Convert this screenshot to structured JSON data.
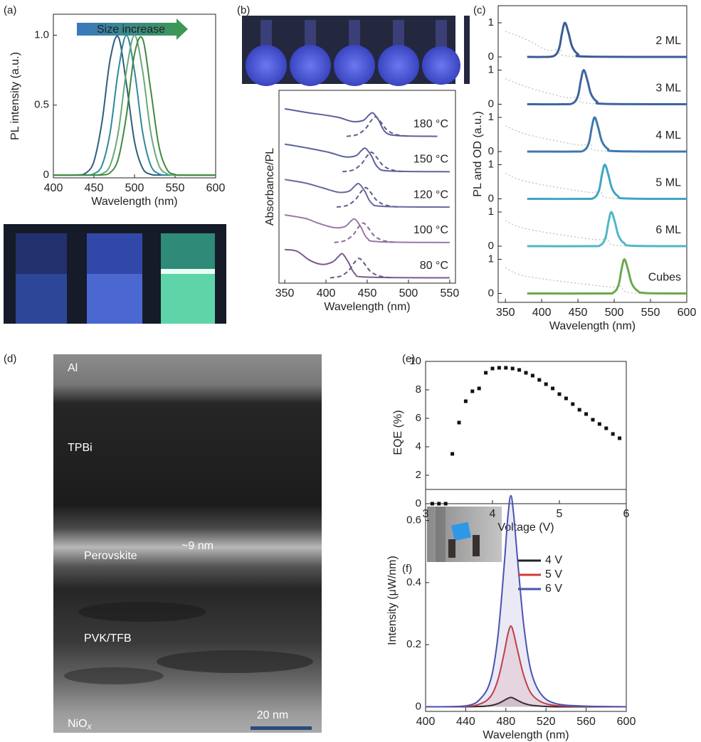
{
  "chart_data": [
    {
      "type": "line",
      "panel_label": "(a)",
      "annotation": "Size increase",
      "xlabel": "Wavelength (nm)",
      "ylabel": "PL intensity (a.u.)",
      "xlim": [
        400,
        600
      ],
      "xticks": [
        400,
        450,
        500,
        550,
        600
      ],
      "ylim": [
        -0.02,
        1.15
      ],
      "yticks": [
        0,
        0.5,
        {
          "value": 1,
          "label": "1.0"
        }
      ],
      "x": [
        400,
        410,
        420,
        430,
        440,
        450,
        460,
        470,
        480,
        490,
        500,
        510,
        520,
        530,
        540,
        550,
        560,
        570,
        580,
        590,
        600
      ],
      "series": [
        {
          "color": "#2f5d7c",
          "values": [
            0,
            0,
            0,
            0.001,
            0.014,
            0.098,
            0.383,
            0.827,
            0.988,
            0.653,
            0.239,
            0.049,
            0.005,
            0,
            0,
            0,
            0,
            0,
            0,
            0,
            0
          ]
        },
        {
          "color": "#2e8a9a",
          "values": [
            0,
            0,
            0,
            0,
            0,
            0.009,
            0.07,
            0.306,
            0.744,
            1,
            0.744,
            0.306,
            0.07,
            0.009,
            0,
            0,
            0,
            0,
            0,
            0,
            0
          ]
        },
        {
          "color": "#6aa87a",
          "values": [
            0,
            0,
            0,
            0,
            0,
            0,
            0.009,
            0.07,
            0.306,
            0.744,
            1,
            0.744,
            0.306,
            0.07,
            0.009,
            0,
            0,
            0,
            0,
            0,
            0
          ]
        },
        {
          "color": "#3e8a3e",
          "values": [
            0,
            0,
            0,
            0,
            0,
            0,
            0.001,
            0.017,
            0.116,
            0.425,
            0.865,
            0.974,
            0.607,
            0.209,
            0.04,
            0.004,
            0,
            0,
            0,
            0,
            0
          ]
        }
      ]
    },
    {
      "type": "line",
      "panel_label": "(b)",
      "xlabel": "Wavelength (nm)",
      "ylabel": "Absorbance/PL",
      "xlim": [
        343,
        557
      ],
      "xticks": [
        350,
        400,
        450,
        500,
        550
      ],
      "ylim": [
        -0.15,
        5.3
      ],
      "series": [
        {
          "name": "180 °C",
          "color": "#5c5e9c",
          "style": "solid",
          "x": [
            350,
            375,
            412,
            432,
            445,
            452,
            457,
            464,
            472,
            487,
            535
          ],
          "values": [
            4.78,
            4.68,
            4.55,
            4.42,
            4.45,
            4.6,
            4.66,
            4.45,
            4.12,
            4.02,
            4
          ]
        },
        {
          "color": "#5c5e8a",
          "style": "dashed",
          "x": [
            425,
            438,
            448,
            454,
            460,
            466,
            474,
            485,
            500
          ],
          "values": [
            4,
            4.05,
            4.22,
            4.42,
            4.55,
            4.42,
            4.18,
            4.05,
            4
          ]
        },
        {
          "name": "150 °C",
          "color": "#5e62a0",
          "style": "solid",
          "x": [
            350,
            375,
            403,
            423,
            436,
            443,
            448,
            455,
            463,
            478,
            550
          ],
          "values": [
            3.78,
            3.68,
            3.55,
            3.42,
            3.45,
            3.6,
            3.66,
            3.45,
            3.12,
            3.02,
            3
          ]
        },
        {
          "color": "#5c5e8a",
          "style": "dashed",
          "x": [
            420,
            433,
            443,
            449,
            455,
            461,
            469,
            480,
            495
          ],
          "values": [
            3,
            3.05,
            3.22,
            3.42,
            3.55,
            3.42,
            3.18,
            3.05,
            3
          ]
        },
        {
          "name": "120 °C",
          "color": "#66689e",
          "style": "solid",
          "x": [
            350,
            375,
            395,
            415,
            428,
            435,
            440,
            447,
            455,
            470,
            550
          ],
          "values": [
            2.78,
            2.68,
            2.55,
            2.42,
            2.45,
            2.6,
            2.66,
            2.45,
            2.12,
            2.02,
            2
          ]
        },
        {
          "color": "#5c5e8a",
          "style": "dashed",
          "x": [
            413,
            426,
            436,
            442,
            448,
            454,
            462,
            473,
            488
          ],
          "values": [
            2,
            2.05,
            2.22,
            2.42,
            2.55,
            2.42,
            2.18,
            2.05,
            2
          ]
        },
        {
          "name": "100 °C",
          "color": "#9a78a8",
          "style": "solid",
          "x": [
            350,
            375,
            390,
            410,
            423,
            430,
            435,
            442,
            450,
            465,
            550
          ],
          "values": [
            1.78,
            1.68,
            1.55,
            1.42,
            1.45,
            1.6,
            1.66,
            1.45,
            1.12,
            1.02,
            1
          ]
        },
        {
          "color": "#8a6a98",
          "style": "dashed",
          "x": [
            410,
            423,
            433,
            439,
            445,
            451,
            459,
            470,
            485
          ],
          "values": [
            1,
            1.05,
            1.22,
            1.42,
            1.55,
            1.42,
            1.18,
            1.05,
            1
          ]
        },
        {
          "name": "80 °C",
          "color": "#7a5a8c",
          "style": "solid",
          "x": [
            350,
            365,
            380,
            395,
            408,
            415,
            420,
            427,
            435,
            450,
            550
          ],
          "values": [
            0.8,
            0.75,
            0.5,
            0.38,
            0.45,
            0.6,
            0.68,
            0.45,
            0.12,
            0.02,
            0
          ]
        },
        {
          "color": "#6a5a80",
          "style": "dashed",
          "x": [
            405,
            418,
            428,
            434,
            440,
            446,
            454,
            465,
            480
          ],
          "values": [
            0,
            0.05,
            0.22,
            0.42,
            0.55,
            0.42,
            0.18,
            0.05,
            0
          ]
        }
      ]
    },
    {
      "type": "line-panels",
      "panel_label": "(c)",
      "xlabel": "Wavelength (nm)",
      "ylabel": "PL and OD (a.u.)",
      "xlim": [
        340,
        600
      ],
      "xticks": [
        350,
        400,
        450,
        500,
        550,
        600
      ],
      "panels": [
        {
          "label": "2 ML",
          "ylim": [
            0,
            1
          ],
          "yticks": [
            0,
            1
          ],
          "series": [
            {
              "color": "#bbbbbb",
              "style": "dotted",
              "x": [
                350,
                380,
                407,
                426,
                440,
                600
              ],
              "values": [
                0.75,
                0.5,
                0.2,
                0.22,
                0.02,
                0
              ]
            },
            {
              "color": "#3b5b95",
              "style": "solid",
              "x": [
                380,
                402,
                417,
                424,
                428,
                432,
                437,
                442,
                450,
                462,
                600
              ],
              "values": [
                0,
                0,
                0.03,
                0.25,
                0.7,
                1,
                0.7,
                0.3,
                0.08,
                0.01,
                0
              ]
            }
          ]
        },
        {
          "label": "3 ML",
          "ylim": [
            0,
            1
          ],
          "yticks": [
            0,
            1
          ],
          "series": [
            {
              "color": "#bbbbbb",
              "style": "dotted",
              "x": [
                350,
                380,
                433,
                452,
                466,
                600
              ],
              "values": [
                0.75,
                0.5,
                0.2,
                0.22,
                0.02,
                0
              ]
            },
            {
              "color": "#3d649f",
              "style": "solid",
              "x": [
                380,
                428,
                443,
                450,
                454,
                458,
                463,
                468,
                476,
                488,
                600
              ],
              "values": [
                0,
                0,
                0.03,
                0.25,
                0.7,
                1,
                0.7,
                0.3,
                0.08,
                0.01,
                0
              ]
            }
          ]
        },
        {
          "label": "4 ML",
          "ylim": [
            0,
            1
          ],
          "yticks": [
            0,
            1
          ],
          "series": [
            {
              "color": "#bbbbbb",
              "style": "dotted",
              "x": [
                350,
                380,
                448,
                467,
                481,
                600
              ],
              "values": [
                0.75,
                0.5,
                0.2,
                0.22,
                0.02,
                0
              ]
            },
            {
              "color": "#3f78ae",
              "style": "solid",
              "x": [
                380,
                443,
                458,
                465,
                469,
                473,
                478,
                483,
                491,
                503,
                600
              ],
              "values": [
                0,
                0,
                0.03,
                0.25,
                0.7,
                1,
                0.7,
                0.3,
                0.08,
                0.01,
                0
              ]
            }
          ]
        },
        {
          "label": "5 ML",
          "ylim": [
            0,
            1
          ],
          "yticks": [
            0,
            1
          ],
          "series": [
            {
              "color": "#bbbbbb",
              "style": "dotted",
              "x": [
                350,
                380,
                462,
                481,
                495,
                600
              ],
              "values": [
                0.75,
                0.5,
                0.2,
                0.22,
                0.02,
                0
              ]
            },
            {
              "color": "#3ea6c4",
              "style": "solid",
              "x": [
                380,
                457,
                472,
                479,
                483,
                487,
                492,
                497,
                505,
                517,
                600
              ],
              "values": [
                0,
                0,
                0.03,
                0.25,
                0.7,
                1,
                0.7,
                0.3,
                0.08,
                0.01,
                0
              ]
            }
          ]
        },
        {
          "label": "6 ML",
          "ylim": [
            0,
            1
          ],
          "yticks": [
            0,
            1
          ],
          "series": [
            {
              "color": "#bbbbbb",
              "style": "dotted",
              "x": [
                350,
                380,
                471,
                490,
                504,
                600
              ],
              "values": [
                0.75,
                0.5,
                0.2,
                0.22,
                0.02,
                0
              ]
            },
            {
              "color": "#4fb7c9",
              "style": "solid",
              "x": [
                380,
                466,
                481,
                488,
                492,
                496,
                501,
                506,
                514,
                526,
                600
              ],
              "values": [
                0,
                0,
                0.03,
                0.25,
                0.7,
                1,
                0.7,
                0.3,
                0.08,
                0.01,
                0
              ]
            }
          ]
        },
        {
          "label": "Cubes",
          "ylim": [
            0,
            1
          ],
          "yticks": [
            0,
            1
          ],
          "series": [
            {
              "color": "#bbbbbb",
              "style": "dotted",
              "x": [
                350,
                380,
                489,
                508,
                522,
                600
              ],
              "values": [
                0.75,
                0.5,
                0.2,
                0.22,
                0.02,
                0
              ]
            },
            {
              "color": "#6aa84f",
              "style": "solid",
              "x": [
                380,
                484,
                499,
                506,
                510,
                514,
                519,
                524,
                532,
                544,
                600
              ],
              "values": [
                0,
                0,
                0.03,
                0.25,
                0.7,
                1,
                0.7,
                0.3,
                0.08,
                0.01,
                0
              ]
            }
          ]
        }
      ]
    },
    {
      "type": "scatter",
      "panel_label": "(e)",
      "xlabel": "Voltage (V)",
      "ylabel": "EQE (%)",
      "color": "#111111",
      "xlim": [
        3,
        6
      ],
      "xticks": [
        3,
        4,
        5,
        6
      ],
      "ylim": [
        0,
        10
      ],
      "yticks": [
        0,
        2,
        4,
        6,
        8,
        10
      ],
      "x": [
        3.1,
        3.2,
        3.3,
        3.4,
        3.5,
        3.6,
        3.7,
        3.8,
        3.9,
        4,
        4.1,
        4.2,
        4.3,
        4.4,
        4.5,
        4.6,
        4.7,
        4.8,
        4.9,
        5,
        5.1,
        5.2,
        5.3,
        5.4,
        5.5,
        5.6,
        5.7,
        5.8,
        5.9
      ],
      "values": [
        0,
        0,
        0,
        3.5,
        5.7,
        7.2,
        7.9,
        8.1,
        9.2,
        9.5,
        9.55,
        9.55,
        9.5,
        9.4,
        9.2,
        9,
        8.7,
        8.4,
        8.1,
        7.7,
        7.4,
        7,
        6.6,
        6.3,
        5.9,
        5.6,
        5.3,
        4.9,
        4.6
      ]
    },
    {
      "type": "line",
      "panel_label": "(f)",
      "xlabel": "Wavelength (nm)",
      "ylabel": "Intensity (μW/nm)",
      "legend": "top-right",
      "fill": true,
      "xlim": [
        400,
        600
      ],
      "xticks": [
        400,
        440,
        480,
        520,
        560,
        600
      ],
      "ylim": [
        -0.015,
        0.7
      ],
      "yticks": [
        0,
        0.2,
        0.4,
        0.6
      ],
      "x": [
        400,
        440,
        455,
        465,
        472,
        478,
        482,
        485,
        488,
        492,
        498,
        505,
        515,
        530,
        560,
        600
      ],
      "series": [
        {
          "name": "4 V",
          "color": "#222222",
          "values": [
            0,
            0,
            0.001,
            0.004,
            0.01,
            0.02,
            0.027,
            0.03,
            0.027,
            0.02,
            0.011,
            0.005,
            0.002,
            0,
            0,
            0
          ]
        },
        {
          "name": "5 V",
          "color": "#d23a3a",
          "values": [
            0,
            0.001,
            0.01,
            0.034,
            0.086,
            0.169,
            0.234,
            0.26,
            0.234,
            0.177,
            0.099,
            0.044,
            0.016,
            0.004,
            0.001,
            0
          ]
        },
        {
          "name": "6 V",
          "color": "#4a52b0",
          "values": [
            0,
            0.003,
            0.027,
            0.088,
            0.224,
            0.442,
            0.612,
            0.68,
            0.612,
            0.462,
            0.258,
            0.116,
            0.041,
            0.01,
            0.002,
            0
          ]
        }
      ]
    }
  ],
  "tem": {
    "panel_label": "(d)",
    "layers": [
      "Al",
      "TPBi",
      "Perovskite",
      "PVK/TFB"
    ],
    "thickness": "~9 nm",
    "substrate": {
      "text": "NiO",
      "subscript": "x"
    },
    "scale_bar": "20 nm"
  }
}
